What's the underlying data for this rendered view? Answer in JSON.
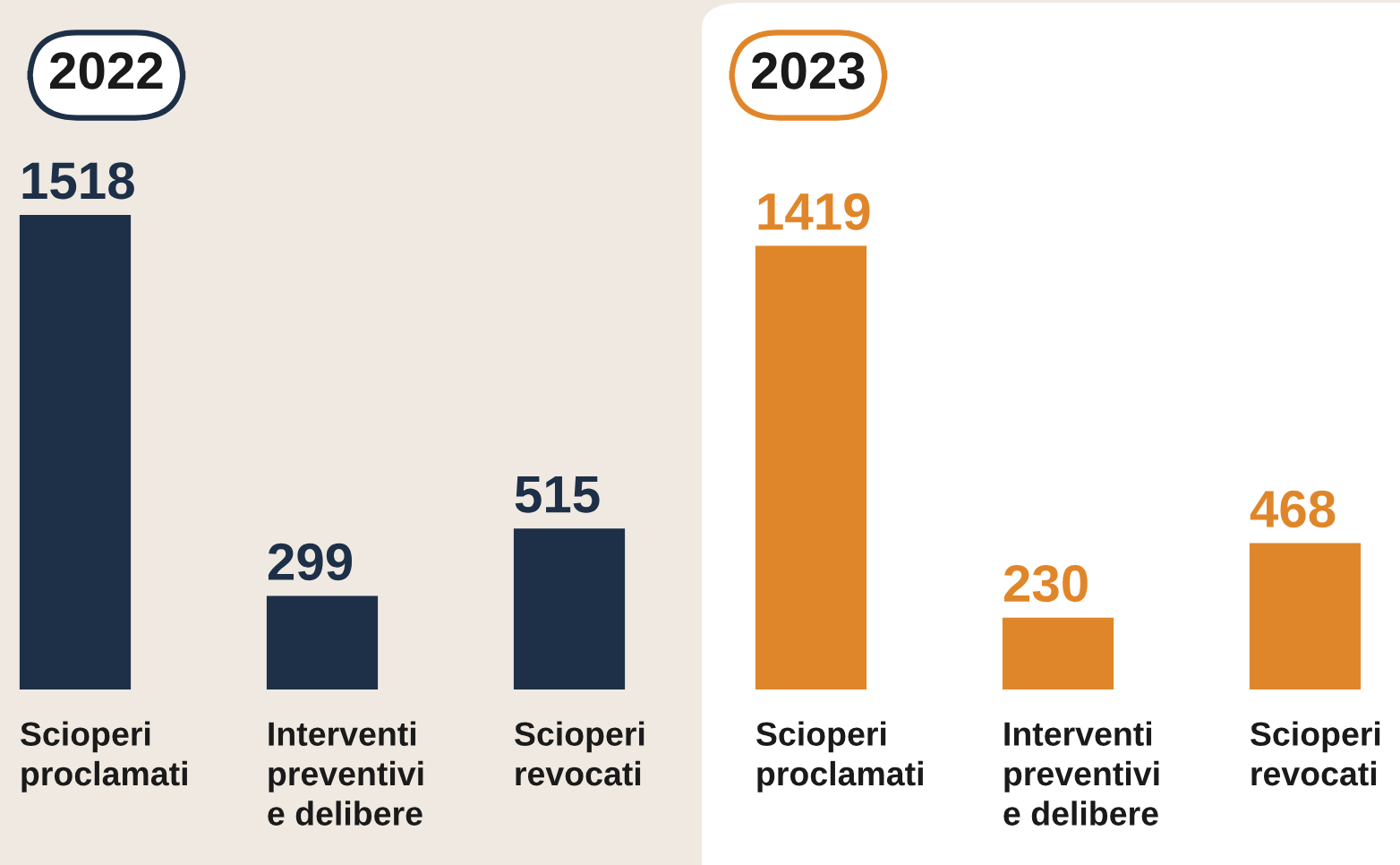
{
  "chart_data": [
    {
      "type": "bar",
      "title": "2022",
      "categories": [
        "Scioperi\nproclamati",
        "Interventi\npreventivi\ne delibere",
        "Scioperi\nrevocati"
      ],
      "values": [
        1518,
        299,
        515
      ],
      "color": "#1e3048",
      "data_labels": true
    },
    {
      "type": "bar",
      "title": "2023",
      "categories": [
        "Scioperi\nproclamati",
        "Interventi\npreventivi\ne delibere",
        "Scioperi\nrevocati"
      ],
      "values": [
        1419,
        230,
        468
      ],
      "color": "#e0862a",
      "data_labels": true
    }
  ]
}
